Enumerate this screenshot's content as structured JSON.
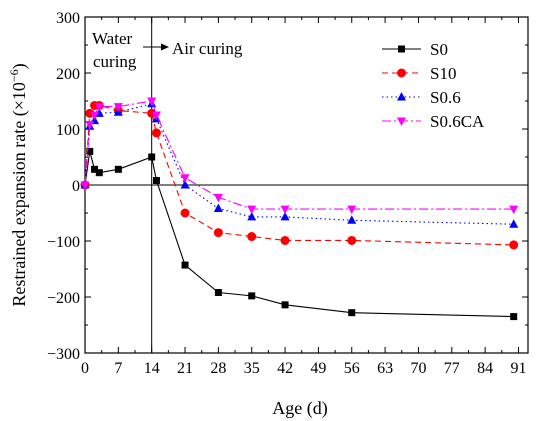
{
  "chart_data": {
    "type": "line",
    "xlabel": "Age (d)",
    "ylabel": "Restrained expansion rate (×10",
    "ylabel_exp": "−6",
    "ylabel_close": ")",
    "xlim": [
      0,
      93
    ],
    "ylim": [
      -300,
      300
    ],
    "xticks": [
      0,
      7,
      14,
      21,
      28,
      35,
      42,
      49,
      56,
      63,
      70,
      77,
      84,
      91
    ],
    "yticks": [
      300,
      200,
      100,
      0,
      -100,
      -200,
      -300
    ],
    "minor_xticks": [
      3.5,
      10.5,
      17.5,
      24.5,
      31.5,
      38.5,
      45.5,
      52.5,
      59.5,
      66.5,
      73.5,
      80.5,
      87.5
    ],
    "minor_yticks": [
      250,
      150,
      50,
      -50,
      -150,
      -250
    ],
    "grid": false,
    "legend_position": "top-right",
    "reference_lines": {
      "x": 14,
      "y": 0
    },
    "annotations": {
      "water_line1": "Water",
      "water_line2": "curing",
      "air": "Air curing"
    },
    "series": [
      {
        "name": "S0",
        "color": "#000000",
        "marker": "square",
        "dash": "solid",
        "x": [
          0,
          1,
          2,
          3,
          7,
          14,
          15,
          21,
          28,
          35,
          42,
          56,
          90
        ],
        "y": [
          0,
          60,
          28,
          22,
          28,
          50,
          8,
          -143,
          -192,
          -198,
          -214,
          -228,
          -235
        ]
      },
      {
        "name": "S10",
        "color": "#ff0000",
        "marker": "circle",
        "dash": "dashed",
        "x": [
          0,
          1,
          2,
          3,
          7,
          14,
          15,
          21,
          28,
          35,
          42,
          56,
          90
        ],
        "y": [
          0,
          128,
          142,
          142,
          133,
          128,
          93,
          -50,
          -85,
          -92,
          -99,
          -99,
          -107
        ]
      },
      {
        "name": "S0.6",
        "color": "#0000ff",
        "marker": "triangle-up",
        "dash": "dotted",
        "x": [
          0,
          1,
          2,
          3,
          7,
          14,
          15,
          21,
          28,
          35,
          42,
          56,
          90
        ],
        "y": [
          0,
          105,
          115,
          128,
          130,
          145,
          118,
          0,
          -42,
          -57,
          -57,
          -63,
          -70
        ]
      },
      {
        "name": "S0.6CA",
        "color": "#ff00ff",
        "marker": "triangle-down",
        "dash": "dashdot",
        "x": [
          0,
          1,
          2,
          3,
          7,
          14,
          15,
          21,
          28,
          35,
          42,
          56,
          90
        ],
        "y": [
          0,
          108,
          125,
          140,
          140,
          150,
          125,
          13,
          -22,
          -43,
          -43,
          -43,
          -43
        ]
      }
    ]
  }
}
